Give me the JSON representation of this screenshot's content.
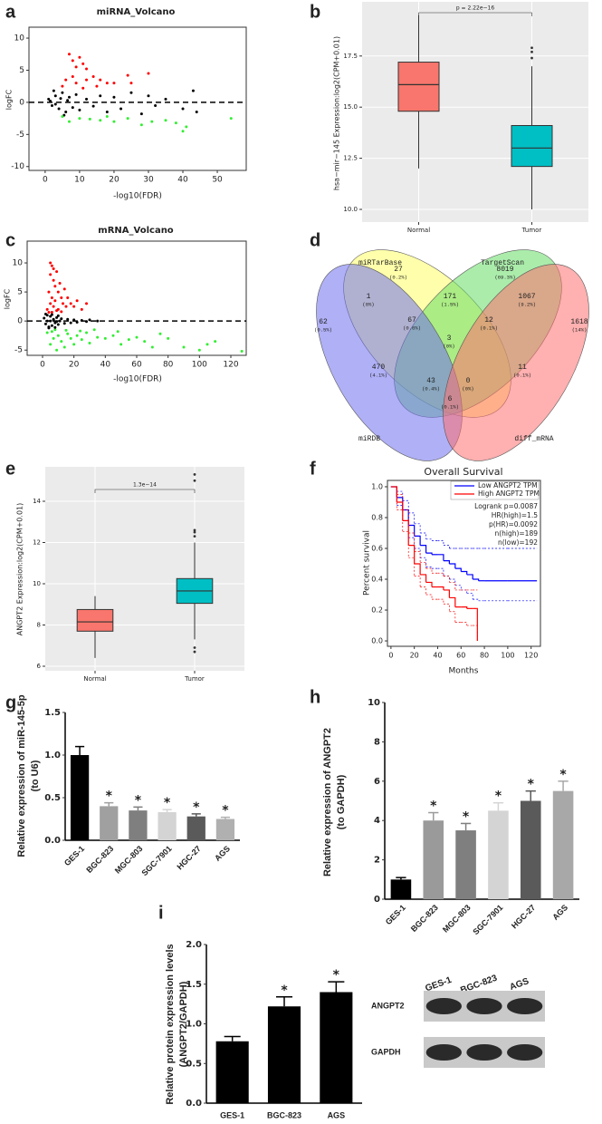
{
  "chart_data": [
    {
      "type": "scatter",
      "panel_label": "a",
      "title": "miRNA_Volcano",
      "x_label": "-log10(FDR)",
      "y_label": "logFC",
      "xlim": [
        -4.7,
        58.4
      ],
      "ylim": [
        -10.6,
        11.7
      ],
      "xticks": [
        0,
        10,
        20,
        30,
        40,
        50
      ],
      "yticks": [
        -10,
        -5,
        0,
        5,
        10
      ],
      "hline": 0,
      "series": [
        {
          "color": "#000000",
          "x": [
            1,
            2,
            3,
            4,
            5,
            6,
            7,
            8,
            9,
            10,
            12,
            14,
            16,
            18,
            20,
            22,
            25,
            28,
            30,
            32,
            35,
            40,
            43,
            44,
            1.5,
            3,
            4.5,
            6.5,
            2.5,
            5.5
          ],
          "values": [
            0.5,
            -0.5,
            1,
            -1,
            1.5,
            -1.5,
            0.8,
            -0.8,
            1.2,
            -1.2,
            0.5,
            -0.6,
            1,
            -1.5,
            0.8,
            -1,
            1.5,
            -1.8,
            1,
            -0.5,
            0.5,
            -1,
            1.8,
            -1.5,
            0.2,
            -0.3,
            0.6,
            0.3,
            1.8,
            -2
          ]
        },
        {
          "color": "#ff0000",
          "x": [
            7,
            8,
            9,
            10,
            11,
            12,
            14,
            16,
            18,
            20,
            24,
            25,
            30,
            8,
            6,
            5,
            9,
            12,
            15,
            11
          ],
          "values": [
            7.5,
            6.5,
            5.5,
            7,
            6,
            5.2,
            4,
            3.5,
            3,
            3,
            4.2,
            3,
            4.5,
            4,
            3.5,
            2.5,
            3,
            3.5,
            2.5,
            2.2
          ]
        },
        {
          "color": "#33ee33",
          "x": [
            7,
            10,
            13,
            16,
            20,
            24,
            28,
            31,
            35,
            38,
            40,
            41,
            54,
            5,
            18
          ],
          "values": [
            -3,
            -2.5,
            -2.6,
            -2.8,
            -3,
            -2.5,
            -3.5,
            -3,
            -2.8,
            -3.2,
            -4.5,
            -3.8,
            -2.5,
            -2.2,
            -2.2
          ]
        }
      ]
    },
    {
      "type": "box",
      "panel_label": "b",
      "y_label": "hsa−mir−145 Expression:log2(CPM+0.01)",
      "annotation": "p = 2.22e−16",
      "categories": [
        "Normal",
        "Tumor"
      ],
      "colors": [
        "#f8766d",
        "#00bfc4"
      ],
      "grid": true,
      "ylim": [
        9.38,
        20.15
      ],
      "yticks": [
        {
          "value": 10,
          "label": "10.0"
        },
        12.5,
        {
          "value": 15,
          "label": "15.0"
        },
        17.5
      ],
      "boxes": [
        {
          "min": 12,
          "q1": 14.8,
          "median": 16.1,
          "q3": 17.2,
          "max": 19.5,
          "outliers": []
        },
        {
          "min": 10,
          "q1": 12.1,
          "median": 13.0,
          "q3": 14.1,
          "max": 17.0,
          "outliers": [
            17.4,
            17.7,
            17.9
          ]
        }
      ]
    },
    {
      "type": "scatter",
      "panel_label": "c",
      "title": "mRNA_Volcano",
      "x_label": "-log10(FDR)",
      "y_label": "logFC",
      "xlim": [
        -9.8,
        129.8
      ],
      "ylim": [
        -5.9,
        13.75
      ],
      "xticks": [
        0,
        20,
        40,
        60,
        80,
        100,
        120
      ],
      "yticks": [
        -5,
        0,
        5,
        10
      ],
      "hline": 0,
      "series": [
        {
          "color": "#ff0000",
          "x": [
            3,
            4,
            5,
            5,
            6,
            6,
            7,
            7,
            8,
            8,
            9,
            10,
            10,
            11,
            12,
            13,
            14,
            15,
            16,
            18,
            20,
            22,
            25,
            28,
            4,
            6,
            9,
            12,
            5,
            7
          ],
          "values": [
            2,
            5,
            8,
            3,
            9.5,
            4,
            7,
            2.5,
            6,
            3.5,
            8.5,
            5,
            2,
            6.5,
            4,
            3,
            5.5,
            2.5,
            4,
            3,
            2.5,
            3.5,
            2,
            3,
            1.5,
            1.5,
            1.8,
            1.6,
            10,
            9
          ]
        },
        {
          "color": "#33ee33",
          "x": [
            3,
            5,
            7,
            9,
            10,
            12,
            14,
            16,
            18,
            20,
            22,
            25,
            28,
            30,
            35,
            40,
            45,
            50,
            55,
            60,
            65,
            70,
            80,
            90,
            100,
            105,
            110,
            127,
            6,
            8,
            15,
            24,
            33,
            48,
            75
          ],
          "values": [
            -2,
            -4,
            -3,
            -5,
            -2.5,
            -3.5,
            -4.5,
            -2.2,
            -3,
            -4,
            -2.5,
            -3.2,
            -2,
            -3.8,
            -2.8,
            -3,
            -2.5,
            -4,
            -3.2,
            -2.8,
            -3.5,
            -4.5,
            -3,
            -4.5,
            -5,
            -4,
            -3.5,
            -5.2,
            -1.8,
            -1.5,
            -1.6,
            -1.7,
            -1.5,
            -1.8,
            -2.2
          ]
        },
        {
          "color": "#000000",
          "x": [
            1,
            2,
            3,
            4,
            5,
            6,
            7,
            8,
            9,
            10,
            12,
            14,
            16,
            18,
            20,
            22,
            25,
            28,
            30,
            35,
            2,
            4,
            6,
            8,
            10,
            3,
            5,
            7,
            9,
            11
          ],
          "values": [
            0.5,
            -0.5,
            1,
            -1,
            0.8,
            -0.8,
            0.3,
            -0.3,
            0.6,
            -0.6,
            0.4,
            -0.4,
            0.3,
            -0.3,
            0.2,
            -0.2,
            0.1,
            -0.1,
            0.2,
            0,
            1.2,
            -1.2,
            1.1,
            -1.1,
            0.9,
            0,
            0,
            0.1,
            -0.1,
            0
          ]
        }
      ]
    },
    {
      "type": "venn",
      "panel_label": "d",
      "sets": [
        {
          "name": "miRTarBase",
          "color": "#ffff66"
        },
        {
          "name": "TargetScan",
          "color": "#66dd66"
        },
        {
          "name": "miRDB",
          "color": "#6f6fee"
        },
        {
          "name": "diff_mRNA",
          "color": "#ff6f6f"
        }
      ],
      "regions": [
        {
          "count": 27,
          "label": "(0.2%)"
        },
        {
          "count": 8019,
          "label": "(69.3%)"
        },
        {
          "count": 1,
          "label": "(0%)"
        },
        {
          "count": 171,
          "label": "(1.5%)"
        },
        {
          "count": 1067,
          "label": "(9.2%)"
        },
        {
          "count": 62,
          "label": "(0.5%)"
        },
        {
          "count": 1618,
          "label": "(14%)"
        },
        {
          "count": 67,
          "label": "(0.6%)"
        },
        {
          "count": 12,
          "label": "(0.1%)"
        },
        {
          "count": 3,
          "label": "(0%)"
        },
        {
          "count": 470,
          "label": "(4.1%)"
        },
        {
          "count": 11,
          "label": "(0.1%)"
        },
        {
          "count": 43,
          "label": "(0.4%)"
        },
        {
          "count": 0,
          "label": "(0%)"
        },
        {
          "count": 6,
          "label": "(0.1%)"
        }
      ]
    },
    {
      "type": "box",
      "panel_label": "e",
      "y_label": "ANGPT2 Expression:log2(CPM+0.01)",
      "annotation": "1.3e−14",
      "categories": [
        "Normal",
        "Tumor"
      ],
      "colors": [
        "#f8766d",
        "#00bfc4"
      ],
      "grid": true,
      "ylim": [
        5.78,
        15.67
      ],
      "yticks": [
        6,
        8,
        10,
        12,
        14
      ],
      "boxes": [
        {
          "min": 6.4,
          "q1": 7.7,
          "median": 8.15,
          "q3": 8.75,
          "max": 9.4,
          "outliers": []
        },
        {
          "min": 7.3,
          "q1": 9.05,
          "median": 9.65,
          "q3": 10.25,
          "max": 12.0,
          "outliers": [
            12.3,
            12.5,
            12.6,
            15.0,
            15.3,
            6.9,
            6.7
          ]
        }
      ]
    },
    {
      "type": "survival",
      "panel_label": "f",
      "title": "Overall Survival",
      "x_label": "Months",
      "y_label": "Percent survival",
      "xlim": [
        -3,
        128
      ],
      "ylim": [
        -0.035,
        1.041
      ],
      "xticks": [
        0,
        20,
        40,
        60,
        80,
        100,
        120
      ],
      "yticks": [
        {
          "value": 0,
          "label": "0.0"
        },
        0.2,
        0.4,
        0.6,
        0.8,
        {
          "value": 1,
          "label": "1.0"
        }
      ],
      "annotations": [
        "Logrank p=0.0087",
        "HR(high)=1.5",
        "p(HR)=0.0092",
        "n(high)=189",
        "n(low)=192"
      ],
      "series": [
        {
          "name": "Low ANGPT2 TPM",
          "color": "#0000ff",
          "x": [
            0,
            5,
            10,
            15,
            20,
            25,
            30,
            35,
            40,
            45,
            50,
            55,
            60,
            65,
            70,
            75,
            80,
            100,
            125
          ],
          "values": [
            1,
            0.93,
            0.85,
            0.75,
            0.68,
            0.62,
            0.57,
            0.56,
            0.56,
            0.52,
            0.5,
            0.47,
            0.45,
            0.43,
            0.4,
            0.39,
            0.39,
            0.39,
            0.39
          ],
          "upper": [
            1,
            0.97,
            0.91,
            0.83,
            0.76,
            0.7,
            0.66,
            0.65,
            0.65,
            0.62,
            0.6,
            0.6,
            0.6,
            0.6,
            0.6,
            0.6,
            0.6,
            0.6,
            0.6
          ],
          "lower": [
            1,
            0.88,
            0.78,
            0.67,
            0.6,
            0.54,
            0.48,
            0.47,
            0.47,
            0.42,
            0.4,
            0.36,
            0.33,
            0.31,
            0.27,
            0.26,
            0.26,
            0.26,
            0.26
          ]
        },
        {
          "name": "High ANGPT2 TPM",
          "color": "#ff0000",
          "x": [
            0,
            5,
            10,
            15,
            20,
            25,
            30,
            35,
            40,
            45,
            50,
            55,
            60,
            65,
            70,
            73,
            74
          ],
          "values": [
            1,
            0.9,
            0.78,
            0.62,
            0.5,
            0.43,
            0.38,
            0.35,
            0.35,
            0.33,
            0.28,
            0.22,
            0.22,
            0.21,
            0.21,
            0.21,
            0
          ],
          "upper": [
            1,
            0.95,
            0.85,
            0.7,
            0.58,
            0.51,
            0.47,
            0.44,
            0.44,
            0.42,
            0.38,
            0.33,
            0.33,
            0.33,
            0.33,
            0.33,
            0.33
          ],
          "lower": [
            1,
            0.85,
            0.71,
            0.54,
            0.42,
            0.35,
            0.3,
            0.27,
            0.27,
            0.24,
            0.19,
            0.12,
            0.12,
            0.1,
            0.1,
            0.1,
            0
          ]
        }
      ]
    },
    {
      "type": "bar",
      "panel_label": "g",
      "y_label": [
        "Relative expression of miR-145-5p",
        "(to U6)"
      ],
      "categories": [
        "GES-1",
        "BGC-823",
        "MGC-803",
        "SGC-7901",
        "HGC-27",
        "AGS"
      ],
      "values": [
        1.0,
        0.4,
        0.35,
        0.33,
        0.28,
        0.25
      ],
      "errors": [
        0.1,
        0.04,
        0.04,
        0.03,
        0.03,
        0.02
      ],
      "colors": [
        "#000000",
        "#a0a0a0",
        "#7f7f7f",
        "#d4d4d4",
        "#5a5a5a",
        "#b0b0b0"
      ],
      "ylim": [
        0,
        1.5
      ],
      "yticks": [
        {
          "value": 0,
          "label": "0.0"
        },
        0.5,
        {
          "value": 1,
          "label": "1.0"
        },
        1.5
      ],
      "annotations": [
        {
          "text": "*",
          "category": "BGC-823"
        },
        {
          "text": "*",
          "category": "MGC-803"
        },
        {
          "text": "*",
          "category": "SGC-7901"
        },
        {
          "text": "*",
          "category": "HGC-27"
        },
        {
          "text": "*",
          "category": "AGS"
        }
      ]
    },
    {
      "type": "bar",
      "panel_label": "h",
      "y_label": [
        "Relative expression of ANGPT2",
        "(to GAPDH)"
      ],
      "categories": [
        "GES-1",
        "BGC-823",
        "MGC-803",
        "SGC-7901",
        "HGC-27",
        "AGS"
      ],
      "values": [
        1.0,
        4.0,
        3.5,
        4.5,
        5.0,
        5.5
      ],
      "errors": [
        0.1,
        0.4,
        0.35,
        0.4,
        0.5,
        0.5
      ],
      "colors": [
        "#000000",
        "#9a9a9a",
        "#7f7f7f",
        "#d4d4d4",
        "#5a5a5a",
        "#a8a8a8"
      ],
      "ylim": [
        0,
        10
      ],
      "yticks": [
        0,
        2,
        4,
        6,
        8,
        10
      ],
      "annotations": [
        {
          "text": "*",
          "category": "BGC-823"
        },
        {
          "text": "*",
          "category": "MGC-803"
        },
        {
          "text": "*",
          "category": "SGC-7901"
        },
        {
          "text": "*",
          "category": "HGC-27"
        },
        {
          "text": "*",
          "category": "AGS"
        }
      ]
    },
    {
      "type": "bar",
      "panel_label": "i",
      "y_label": [
        "Relative protein expression levels",
        "(ANGPT2/GAPDH)"
      ],
      "categories": [
        "GES-1",
        "BGC-823",
        "AGS"
      ],
      "values": [
        0.78,
        1.22,
        1.4
      ],
      "errors": [
        0.06,
        0.12,
        0.13
      ],
      "colors": [
        "#000000",
        "#000000",
        "#000000"
      ],
      "ylim": [
        0,
        2
      ],
      "yticks": [
        {
          "value": 0,
          "label": "0.0"
        },
        0.5,
        {
          "value": 1,
          "label": "1.0"
        },
        1.5,
        {
          "value": 2,
          "label": "2.0"
        }
      ],
      "annotations": [
        {
          "text": "*",
          "category": "BGC-823"
        },
        {
          "text": "*",
          "category": "AGS"
        }
      ],
      "blot": {
        "lanes": [
          "GES-1",
          "BGC-823",
          "AGS"
        ],
        "rows": [
          "ANGPT2",
          "GAPDH"
        ]
      }
    }
  ]
}
